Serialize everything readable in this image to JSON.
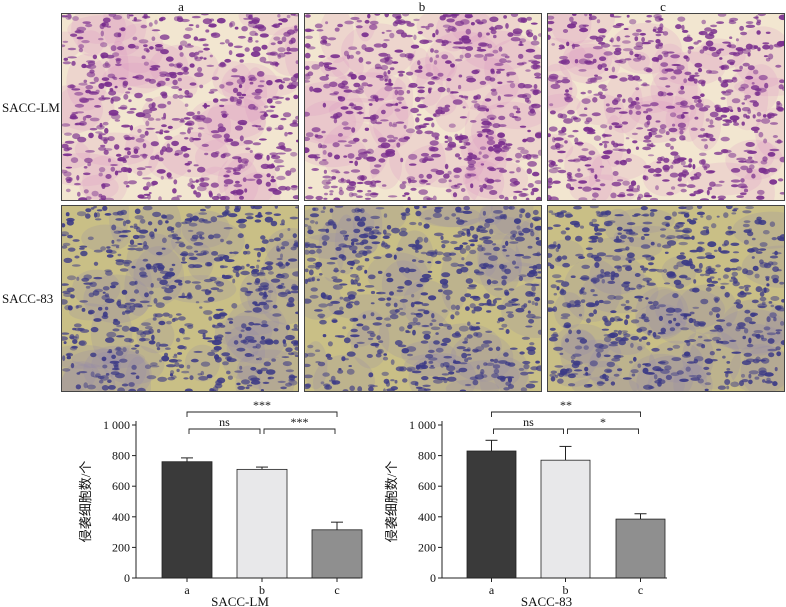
{
  "figure": {
    "columns": [
      "a",
      "b",
      "c"
    ],
    "rows": [
      "SACC-LM",
      "SACC-83"
    ],
    "panel_colors": {
      "SACC-LM": {
        "bg": "#f2e6d0",
        "cell": "#7a2f8e",
        "tint": "#d889c4"
      },
      "SACC-83": {
        "bg": "#c9bf86",
        "cell": "#3c3a86",
        "tint": "#8a7fb4"
      }
    }
  },
  "chart_data": [
    {
      "type": "bar",
      "xlabel": "SACC-LM",
      "ylabel": "侵袭细胞数/个",
      "categories": [
        "a",
        "b",
        "c"
      ],
      "values": [
        760,
        710,
        315
      ],
      "errors": [
        25,
        15,
        50
      ],
      "bar_colors": [
        "#3a3a3a",
        "#e8e8ea",
        "#8f8f8f"
      ],
      "ylim": [
        0,
        1000
      ],
      "yticks": [
        0,
        200,
        400,
        600,
        800,
        1000
      ],
      "ytick_labels": [
        "0",
        "200",
        "400",
        "600",
        "800",
        "1 000"
      ],
      "significance": [
        {
          "from": 0,
          "to": 2,
          "label": "***",
          "level": 1
        },
        {
          "from": 0,
          "to": 1,
          "label": "ns",
          "level": 0
        },
        {
          "from": 1,
          "to": 2,
          "label": "***",
          "level": 0
        }
      ]
    },
    {
      "type": "bar",
      "xlabel": "SACC-83",
      "ylabel": "侵袭细胞数/个",
      "categories": [
        "a",
        "b",
        "c"
      ],
      "values": [
        830,
        770,
        385
      ],
      "errors": [
        70,
        90,
        35
      ],
      "bar_colors": [
        "#3a3a3a",
        "#e8e8ea",
        "#8f8f8f"
      ],
      "ylim": [
        0,
        1000
      ],
      "yticks": [
        0,
        200,
        400,
        600,
        800,
        1000
      ],
      "ytick_labels": [
        "0",
        "200",
        "400",
        "600",
        "800",
        "1 000"
      ],
      "significance": [
        {
          "from": 0,
          "to": 2,
          "label": "**",
          "level": 1
        },
        {
          "from": 0,
          "to": 1,
          "label": "ns",
          "level": 0
        },
        {
          "from": 1,
          "to": 2,
          "label": "*",
          "level": 0
        }
      ]
    }
  ]
}
